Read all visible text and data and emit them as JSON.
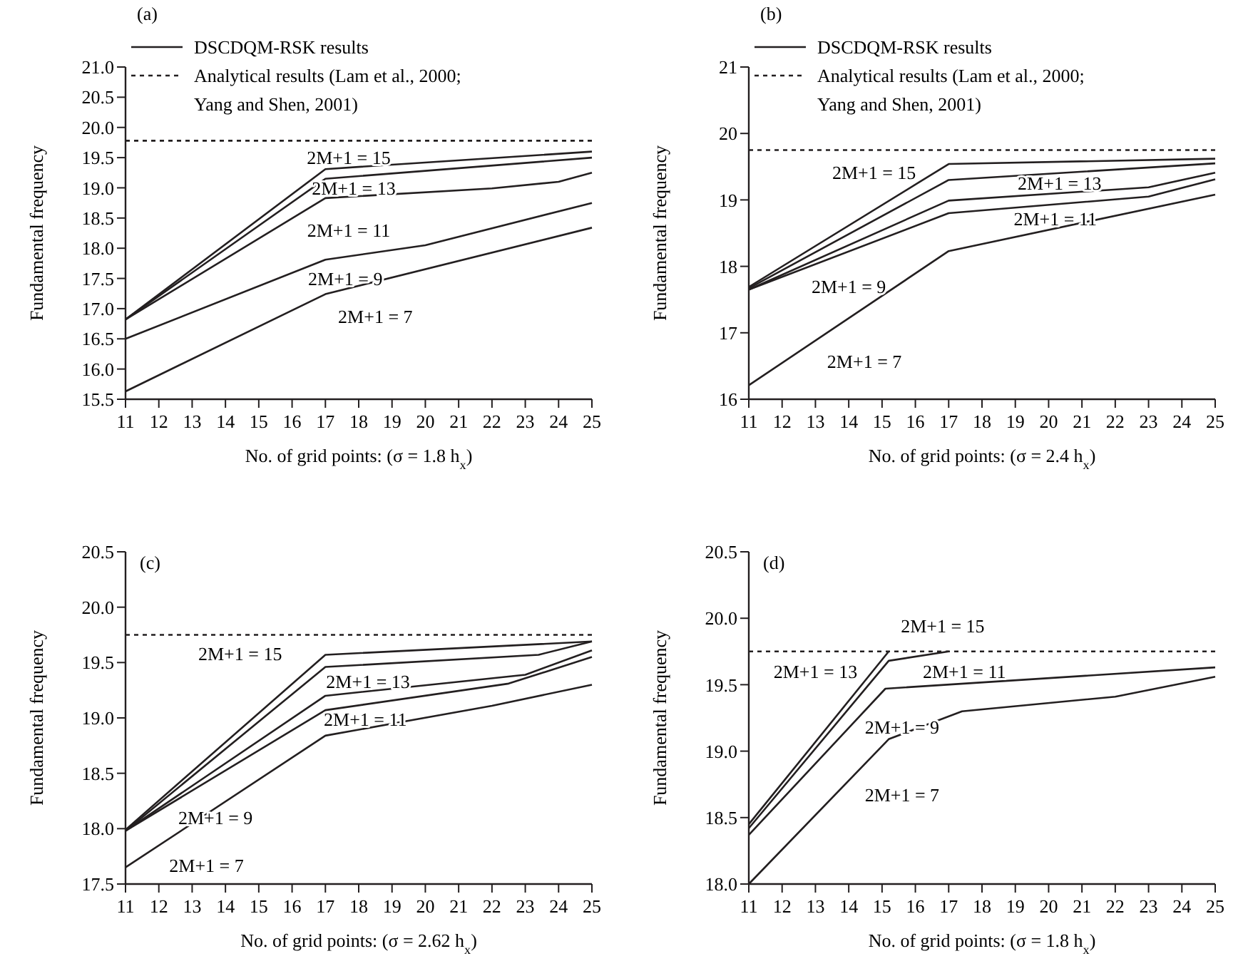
{
  "chart_data": [
    {
      "type": "line",
      "title": "(a)",
      "xlabel": "No. of grid points: (σ = 1.8 h$_{x}$)",
      "ylabel": "Fundamental frequency",
      "legend": "top left",
      "line_style": "solid",
      "xlim": [
        11,
        25
      ],
      "xticks": [
        11,
        12,
        13,
        14,
        15,
        16,
        17,
        18,
        19,
        20,
        21,
        22,
        23,
        24,
        25
      ],
      "ylim": [
        15.5,
        21.0
      ],
      "yticks": [
        15.5,
        {
          "value": 16,
          "label": "16.0"
        },
        16.5,
        {
          "value": 17,
          "label": "17.0"
        },
        17.5,
        {
          "value": 18,
          "label": "18.0"
        },
        18.5,
        {
          "value": 19,
          "label": "19.0"
        },
        19.5,
        {
          "value": 20,
          "label": "20.0"
        },
        20.5,
        {
          "value": 21,
          "label": "21.0"
        }
      ],
      "series": [
        {
          "name": "DSCDQM-RSK results",
          "color": "#231f20",
          "x": [
            11,
            17,
            25
          ],
          "values": [
            16.82,
            19.31,
            19.6
          ]
        },
        {
          "color": "#231f20",
          "x": [
            11,
            17,
            25
          ],
          "values": [
            16.82,
            19.15,
            19.5
          ]
        },
        {
          "color": "#231f20",
          "x": [
            11,
            17,
            22,
            24,
            25
          ],
          "values": [
            16.82,
            18.83,
            18.99,
            19.1,
            19.25
          ]
        },
        {
          "color": "#231f20",
          "x": [
            11,
            17,
            20,
            25
          ],
          "values": [
            16.5,
            17.81,
            18.05,
            18.75
          ]
        },
        {
          "color": "#231f20",
          "x": [
            11,
            17,
            25
          ],
          "values": [
            15.63,
            17.24,
            18.34
          ]
        },
        {
          "name": "Analytical results (Lam et al., 2000; Yang and Shen, 2001)",
          "color": "#231f20",
          "line_style": "dotted",
          "x": [
            11,
            25
          ],
          "values": [
            19.78,
            19.78
          ]
        }
      ],
      "annotations": [
        "2M+1 = 15",
        "2M+1 = 13",
        "2M+1 = 11",
        "2M+1 = 9",
        "2M+1 = 7"
      ]
    },
    {
      "type": "line",
      "title": "(b)",
      "xlabel": "No. of grid points: (σ = 2.4 h$_{x}$)",
      "ylabel": "Fundamental frequency",
      "legend": "top left",
      "line_style": "solid",
      "xlim": [
        11,
        25
      ],
      "xticks": [
        11,
        12,
        13,
        14,
        15,
        16,
        17,
        18,
        19,
        20,
        21,
        22,
        23,
        24,
        25
      ],
      "ylim": [
        16,
        21
      ],
      "yticks": [
        16,
        17,
        18,
        19,
        20,
        21
      ],
      "series": [
        {
          "name": "DSCDQM-RSK results",
          "color": "#231f20",
          "x": [
            11,
            17,
            25
          ],
          "values": [
            17.69,
            19.54,
            19.62
          ]
        },
        {
          "color": "#231f20",
          "x": [
            11,
            17,
            25
          ],
          "values": [
            17.67,
            19.3,
            19.55
          ]
        },
        {
          "color": "#231f20",
          "x": [
            11,
            17,
            23,
            25
          ],
          "values": [
            17.65,
            18.99,
            19.19,
            19.41
          ]
        },
        {
          "color": "#231f20",
          "x": [
            11,
            17,
            23,
            25
          ],
          "values": [
            17.65,
            18.8,
            19.05,
            19.31
          ]
        },
        {
          "color": "#231f20",
          "x": [
            11,
            17,
            25
          ],
          "values": [
            16.21,
            18.23,
            19.08
          ]
        },
        {
          "name": "Analytical results (Lam et al., 2000; Yang and Shen, 2001)",
          "color": "#231f20",
          "line_style": "dotted",
          "x": [
            11,
            25
          ],
          "values": [
            19.75,
            19.75
          ]
        }
      ],
      "annotations": [
        "2M+1 = 15",
        "2M+1 = 13",
        "2M+1 = 11",
        "2M+1 = 9",
        "2M+1 = 7"
      ]
    },
    {
      "type": "line",
      "title": "(c)",
      "xlabel": "No. of grid points: (σ = 2.62 h$_{x}$)",
      "ylabel": "Fundamental frequency",
      "line_style": "solid",
      "xlim": [
        11,
        25
      ],
      "xticks": [
        11,
        12,
        13,
        14,
        15,
        16,
        17,
        18,
        19,
        20,
        21,
        22,
        23,
        24,
        25
      ],
      "ylim": [
        17.5,
        20.5
      ],
      "yticks": [
        17.5,
        {
          "value": 18,
          "label": "18.0"
        },
        18.5,
        {
          "value": 19,
          "label": "19.0"
        },
        19.5,
        {
          "value": 20,
          "label": "20.0"
        },
        20.5
      ],
      "series": [
        {
          "color": "#231f20",
          "x": [
            11,
            17,
            25
          ],
          "values": [
            17.99,
            19.57,
            19.69
          ]
        },
        {
          "color": "#231f20",
          "x": [
            11,
            17,
            23.4,
            25
          ],
          "values": [
            17.98,
            19.46,
            19.57,
            19.69
          ]
        },
        {
          "color": "#231f20",
          "x": [
            11,
            17,
            23,
            25
          ],
          "values": [
            17.98,
            19.2,
            19.39,
            19.61
          ]
        },
        {
          "color": "#231f20",
          "x": [
            11,
            17,
            22.5,
            25
          ],
          "values": [
            17.98,
            19.07,
            19.31,
            19.55
          ]
        },
        {
          "color": "#231f20",
          "x": [
            11,
            17,
            22,
            25
          ],
          "values": [
            17.65,
            18.84,
            19.11,
            19.3
          ]
        },
        {
          "color": "#231f20",
          "line_style": "dotted",
          "x": [
            11,
            25
          ],
          "values": [
            19.75,
            19.75
          ]
        }
      ],
      "annotations": [
        "2M+1 = 15",
        "2M+1 = 13",
        "2M+1 = 11",
        "2M+1 = 9",
        "2M+1 = 7"
      ]
    },
    {
      "type": "line",
      "title": "(d)",
      "xlabel": "No. of grid points: (σ = 1.8 h$_{x}$)",
      "ylabel": "Fundamental frequency",
      "line_style": "solid",
      "xlim": [
        11,
        25
      ],
      "xticks": [
        11,
        12,
        13,
        14,
        15,
        16,
        17,
        18,
        19,
        20,
        21,
        22,
        23,
        24,
        25
      ],
      "ylim": [
        18.0,
        20.5
      ],
      "yticks": [
        {
          "value": 18,
          "label": "18.0"
        },
        18.5,
        {
          "value": 19,
          "label": "19.0"
        },
        19.5,
        {
          "value": 20,
          "label": "20.0"
        },
        20.5
      ],
      "series": [
        {
          "color": "#231f20",
          "x": [
            11,
            15.2
          ],
          "values": [
            18.45,
            19.75
          ]
        },
        {
          "color": "#231f20",
          "x": [
            11,
            15.2,
            17
          ],
          "values": [
            18.42,
            19.68,
            19.75
          ]
        },
        {
          "color": "#231f20",
          "x": [
            11,
            15.1,
            25
          ],
          "values": [
            18.37,
            19.47,
            19.63
          ]
        },
        {
          "color": "#231f20",
          "x": [
            11,
            15.2,
            17.4,
            22,
            25
          ],
          "values": [
            18.0,
            19.09,
            19.3,
            19.41,
            19.56
          ]
        },
        {
          "color": "#231f20",
          "line_style": "dotted",
          "x": [
            11,
            25
          ],
          "values": [
            19.75,
            19.75
          ]
        }
      ],
      "annotations": [
        "2M+1 = 15",
        "2M+1 = 13",
        "2M+1 = 11",
        "2M+1 = 9",
        "2M+1 = 7"
      ]
    }
  ]
}
